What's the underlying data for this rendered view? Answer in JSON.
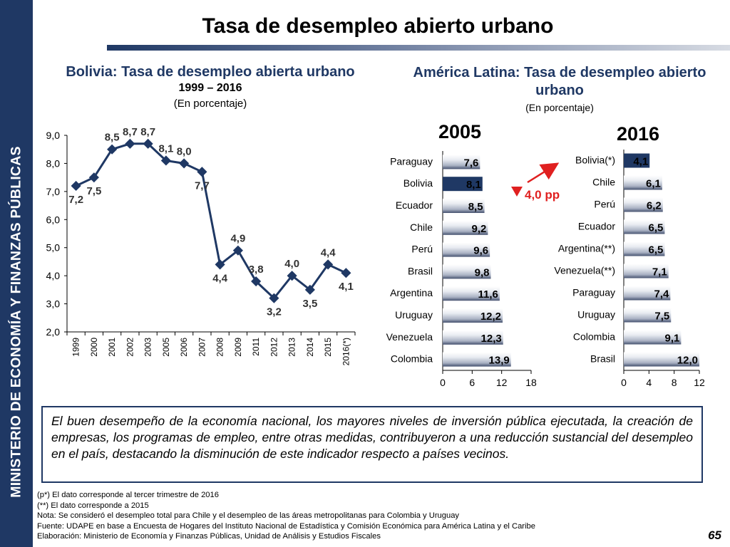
{
  "sidebar_text": "MINISTERIO DE ECONOMÍA Y FINANZAS PÚBLICAS",
  "title": "Tasa de desempleo abierto urbano",
  "left_panel": {
    "title": "Bolivia: Tasa de desempleo abierta urbano",
    "subtitle": "1999 – 2016",
    "unit": "(En porcentaje)"
  },
  "right_panel": {
    "title": "América Latina: Tasa de desempleo abierto urbano",
    "unit": "(En porcentaje)"
  },
  "summary": "El buen desempeño de la economía nacional, los mayores niveles de inversión pública ejecutada, la creación de empresas, los programas de empleo, entre otras medidas, contribuyeron a una reducción sustancial del desempleo en el país, destacando la disminución de este indicador respecto a países vecinos.",
  "notes": [
    "(p*) El dato corresponde al tercer trimestre de 2016",
    "(**) El dato corresponde a 2015",
    "Nota: Se consideró el desempleo total para Chile y el desempleo de las áreas metropolitanas para Colombia y Uruguay",
    "Fuente: UDAPE en base a Encuesta de Hogares del Instituto Nacional de Estadística y Comisión Económica para América Latina y el Caribe",
    "Elaboración: Ministerio de Economía y Finanzas Públicas, Unidad de Análisis y Estudios Fiscales"
  ],
  "page_number": "65",
  "colors": {
    "navy": "#1f3864",
    "red": "#e02020",
    "bar_light": "#e8ebf1"
  },
  "chart_data": [
    {
      "type": "line",
      "x": [
        "1999",
        "2000",
        "2001",
        "2002",
        "2003",
        "2005",
        "2006",
        "2007",
        "2008",
        "2009",
        "2011",
        "2012",
        "2013",
        "2014",
        "2015",
        "2016(*)"
      ],
      "series": [
        {
          "values": [
            7.2,
            7.5,
            8.5,
            8.7,
            8.7,
            8.1,
            8.0,
            7.7,
            4.4,
            4.9,
            3.8,
            3.2,
            4.0,
            3.5,
            4.4,
            4.1
          ]
        }
      ],
      "data_labels": [
        "7,2",
        "7,5",
        "8,5",
        "8,7",
        "8,7",
        "8,1",
        "8,0",
        "7,7",
        "4,4",
        "4,9",
        "3,8",
        "3,2",
        "4,0",
        "3,5",
        "4,4",
        "4,1"
      ],
      "ylim": [
        2.0,
        9.0
      ],
      "yticks": [
        "2,0",
        "3,0",
        "4,0",
        "5,0",
        "6,0",
        "7,0",
        "8,0",
        "9,0"
      ],
      "grid": false
    },
    {
      "type": "bar",
      "orientation": "horizontal",
      "year_label": "2005",
      "categories": [
        "Paraguay",
        "Bolivia",
        "Ecuador",
        "Chile",
        "Perú",
        "Brasil",
        "Argentina",
        "Uruguay",
        "Venezuela",
        "Colombia"
      ],
      "values": [
        7.6,
        8.1,
        8.5,
        9.2,
        9.6,
        9.8,
        11.6,
        12.2,
        12.3,
        13.9
      ],
      "data_labels": [
        "7,6",
        "8,1",
        "8,5",
        "9,2",
        "9,6",
        "9,8",
        "11,6",
        "12,2",
        "12,3",
        "13,9"
      ],
      "highlight": "Bolivia",
      "xlim": [
        0,
        18
      ],
      "xticks": [
        "0",
        "6",
        "12",
        "18"
      ]
    },
    {
      "type": "bar",
      "orientation": "horizontal",
      "year_label": "2016",
      "categories": [
        "Bolivia(*)",
        "Chile",
        "Perú",
        "Ecuador",
        "Argentina(**)",
        "Venezuela(**)",
        "Paraguay",
        "Uruguay",
        "Colombia",
        "Brasil"
      ],
      "values": [
        4.1,
        6.1,
        6.2,
        6.5,
        6.5,
        7.1,
        7.4,
        7.5,
        9.1,
        12.0
      ],
      "data_labels": [
        "4,1",
        "6,1",
        "6,2",
        "6,5",
        "6,5",
        "7,1",
        "7,4",
        "7,5",
        "9,1",
        "12,0"
      ],
      "highlight": "Bolivia(*)",
      "xlim": [
        0,
        12
      ],
      "xticks": [
        "0",
        "4",
        "8",
        "12"
      ]
    }
  ],
  "annotation": {
    "text": "4,0 pp"
  }
}
